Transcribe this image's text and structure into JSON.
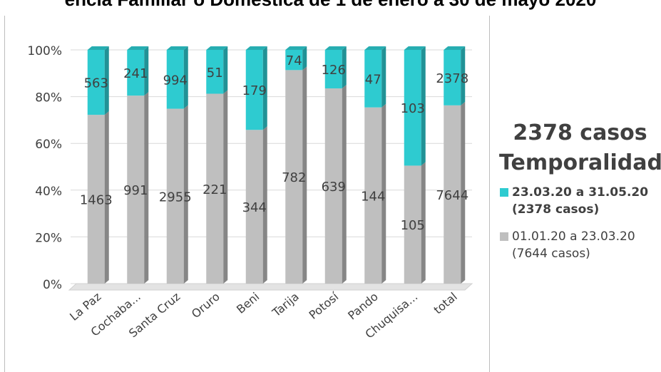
{
  "title": "encia Familiar o Doméstica de 1 de enero a 30 de mayo 2020",
  "legend": {
    "heading_line1": "2378 casos",
    "heading_line2": "Temporalidad",
    "items": [
      {
        "line1": "23.03.20 a 31.05.20",
        "line2": "(2378 casos)",
        "color": "#2ecbd0"
      },
      {
        "line1": "01.01.20 a 23.03.20",
        "line2": "(7644 casos)",
        "color": "#bfbfbf"
      }
    ]
  },
  "chart_data": {
    "type": "bar",
    "stacked": "percent",
    "categories": [
      "La Paz",
      "Cochaba...",
      "Santa Cruz",
      "Oruro",
      "Beni",
      "Tarija",
      "Potosí",
      "Pando",
      "Chuquisa...",
      "total"
    ],
    "series": [
      {
        "name": "01.01.20 a 23.03.20 (7644 casos)",
        "color": "#bfbfbf",
        "values": [
          1463,
          991,
          2955,
          221,
          344,
          782,
          639,
          144,
          105,
          7644
        ]
      },
      {
        "name": "23.03.20 a 31.05.20 (2378 casos)",
        "color": "#2ecbd0",
        "values": [
          563,
          241,
          994,
          51,
          179,
          74,
          126,
          47,
          103,
          2378
        ]
      }
    ],
    "y_ticks": [
      "0%",
      "20%",
      "40%",
      "60%",
      "80%",
      "100%"
    ],
    "ylim": [
      0,
      100
    ],
    "grid": true,
    "legend_position": "right"
  }
}
